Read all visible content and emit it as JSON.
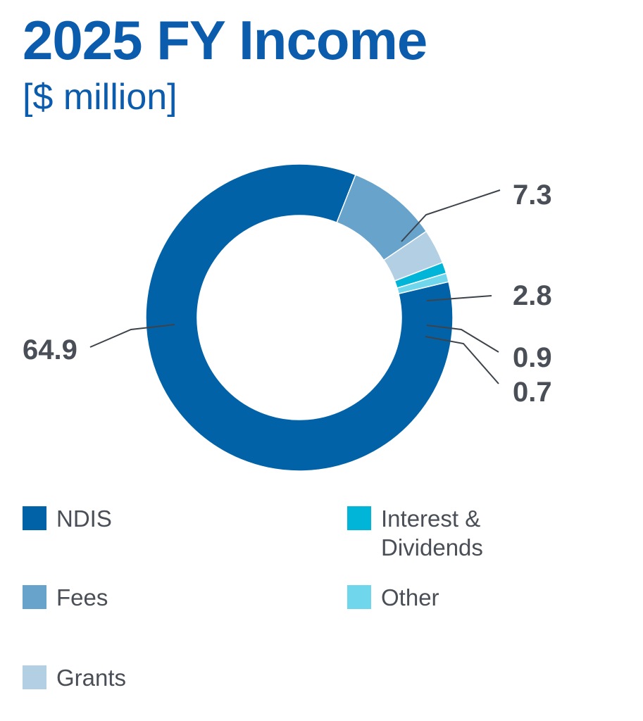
{
  "chart_data": {
    "type": "pie",
    "title": "2025 FY Income",
    "subtitle": "[$ million]",
    "donut": true,
    "categories": [
      "NDIS",
      "Fees",
      "Grants",
      "Interest & Dividends",
      "Other"
    ],
    "values": [
      64.9,
      7.3,
      2.8,
      0.9,
      0.7
    ],
    "data_labels": [
      "64.9",
      "7.3",
      "2.8",
      "0.9",
      "0.7"
    ],
    "colors": [
      "#0262a8",
      "#67a3cb",
      "#b3cfe4",
      "#00b5d8",
      "#6fd6ec"
    ],
    "legend": {
      "placement": "bottom",
      "entries": [
        "NDIS",
        "Fees",
        "Grants",
        "Interest &\nDividends",
        "Other"
      ]
    }
  }
}
